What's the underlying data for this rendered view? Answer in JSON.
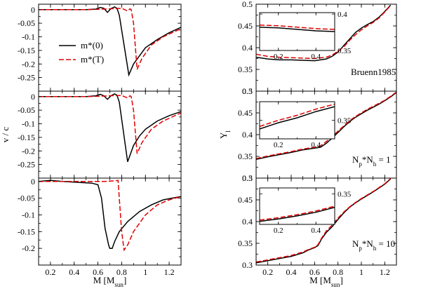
{
  "figure_title": "",
  "legend": {
    "solid": "m*(0)",
    "dashed": "m*(T)"
  },
  "colors": {
    "solid": "#000000",
    "dashed": "#e00000"
  },
  "chart_data": [
    {
      "type": "line",
      "panel": "left-top",
      "xlim": [
        0.1,
        1.3
      ],
      "ylim": [
        -0.3,
        0.02
      ],
      "xticks": [
        "0.2",
        "0.4",
        "0.6",
        "0.8",
        "1",
        "1.2"
      ],
      "yticks": [
        "0",
        "-0.05",
        "-0.1",
        "-0.15",
        "-0.2",
        "-0.25"
      ],
      "ytick_values": [
        0,
        -0.05,
        -0.1,
        -0.15,
        -0.2,
        -0.25
      ],
      "xlabel": "",
      "ylabel": "",
      "series": [
        {
          "name": "m*(0)",
          "style": "solid",
          "x": [
            0.1,
            0.3,
            0.5,
            0.58,
            0.62,
            0.65,
            0.68,
            0.71,
            0.74,
            0.76,
            0.78,
            0.86,
            0.9,
            0.95,
            1.0,
            1.1,
            1.2,
            1.3
          ],
          "y": [
            0,
            0,
            0,
            0.002,
            0.008,
            0.005,
            -0.01,
            0.004,
            0.01,
            0.005,
            -0.02,
            -0.24,
            -0.2,
            -0.17,
            -0.14,
            -0.11,
            -0.085,
            -0.065
          ]
        },
        {
          "name": "m*(T)",
          "style": "dashed",
          "x": [
            0.1,
            0.5,
            0.65,
            0.75,
            0.8,
            0.85,
            0.87,
            0.88,
            0.9,
            0.93,
            0.97,
            1.05,
            1.15,
            1.3
          ],
          "y": [
            0,
            0,
            0.002,
            0.004,
            0.005,
            -0.005,
            0.003,
            0.0,
            -0.05,
            -0.22,
            -0.18,
            -0.13,
            -0.1,
            -0.07
          ]
        }
      ]
    },
    {
      "type": "line",
      "panel": "left-middle",
      "xlim": [
        0.1,
        1.3
      ],
      "ylim": [
        -0.3,
        0.02
      ],
      "xticks": [
        "0.2",
        "0.4",
        "0.6",
        "0.8",
        "1",
        "1.2"
      ],
      "yticks": [
        "0",
        "-0.05",
        "-0.1",
        "-0.15",
        "-0.2",
        "-0.25"
      ],
      "ytick_values": [
        0,
        -0.05,
        -0.1,
        -0.15,
        -0.2,
        -0.25
      ],
      "xlabel": "",
      "ylabel": "v / c",
      "series": [
        {
          "name": "m*(0)",
          "style": "solid",
          "x": [
            0.1,
            0.3,
            0.5,
            0.58,
            0.62,
            0.65,
            0.68,
            0.71,
            0.74,
            0.76,
            0.78,
            0.85,
            0.9,
            0.95,
            1.0,
            1.1,
            1.2,
            1.3
          ],
          "y": [
            0,
            0,
            0,
            0.003,
            0.008,
            0.003,
            -0.01,
            0.003,
            0.01,
            0.005,
            -0.02,
            -0.24,
            -0.18,
            -0.145,
            -0.12,
            -0.09,
            -0.07,
            -0.055
          ]
        },
        {
          "name": "m*(T)",
          "style": "dashed",
          "x": [
            0.1,
            0.5,
            0.65,
            0.75,
            0.8,
            0.85,
            0.87,
            0.88,
            0.9,
            0.93,
            0.97,
            1.05,
            1.15,
            1.3
          ],
          "y": [
            0,
            0,
            0.002,
            0.004,
            0.004,
            -0.005,
            0.003,
            0.0,
            -0.05,
            -0.21,
            -0.17,
            -0.12,
            -0.09,
            -0.06
          ]
        }
      ]
    },
    {
      "type": "line",
      "panel": "left-bottom",
      "xlim": [
        0.1,
        1.3
      ],
      "ylim": [
        -0.25,
        0.01
      ],
      "xticks": [
        "0.2",
        "0.4",
        "0.6",
        "0.8",
        "1",
        "1.2"
      ],
      "yticks": [
        "0",
        "-0.05",
        "-0.1",
        "-0.15",
        "-0.2"
      ],
      "ytick_values": [
        0,
        -0.05,
        -0.1,
        -0.15,
        -0.2
      ],
      "xlabel": "M [M_sun]",
      "ylabel": "",
      "series": [
        {
          "name": "m*(0)",
          "style": "solid",
          "x": [
            0.1,
            0.2,
            0.3,
            0.4,
            0.5,
            0.55,
            0.6,
            0.63,
            0.66,
            0.69,
            0.7,
            0.72,
            0.74,
            0.78,
            0.85,
            0.95,
            1.05,
            1.15,
            1.3
          ],
          "y": [
            0,
            0.003,
            0.0,
            -0.002,
            -0.004,
            -0.005,
            -0.01,
            -0.05,
            -0.14,
            -0.19,
            -0.2,
            -0.2,
            -0.18,
            -0.15,
            -0.12,
            -0.09,
            -0.07,
            -0.055,
            -0.045
          ]
        },
        {
          "name": "m*(T)",
          "style": "dashed",
          "x": [
            0.1,
            0.3,
            0.5,
            0.65,
            0.75,
            0.77,
            0.78,
            0.8,
            0.82,
            0.85,
            0.9,
            1.0,
            1.1,
            1.2,
            1.3
          ],
          "y": [
            0,
            0,
            0,
            0,
            0.002,
            0.003,
            -0.05,
            -0.15,
            -0.205,
            -0.19,
            -0.15,
            -0.1,
            -0.07,
            -0.055,
            -0.045
          ]
        }
      ]
    },
    {
      "type": "line",
      "panel": "right-top",
      "xlim": [
        0.1,
        1.3
      ],
      "ylim": [
        0.3,
        0.5
      ],
      "xticks": [
        "0.2",
        "0.4",
        "0.6",
        "0.8",
        "1",
        "1.2"
      ],
      "yticks": [
        "0.5",
        "0.45",
        "0.4",
        "0.35",
        "0.3"
      ],
      "ytick_values": [
        0.5,
        0.45,
        0.4,
        0.35,
        0.3
      ],
      "xlabel": "",
      "ylabel": "",
      "annotation": "Bruenn1985",
      "series": [
        {
          "name": "m*(0)",
          "style": "solid",
          "x": [
            0.1,
            0.2,
            0.3,
            0.4,
            0.5,
            0.6,
            0.7,
            0.75,
            0.8,
            0.85,
            0.9,
            0.95,
            1.0,
            1.05,
            1.1,
            1.15,
            1.2,
            1.25
          ],
          "y": [
            0.378,
            0.374,
            0.372,
            0.372,
            0.371,
            0.37,
            0.374,
            0.38,
            0.39,
            0.405,
            0.42,
            0.435,
            0.445,
            0.453,
            0.46,
            0.47,
            0.483,
            0.498
          ]
        },
        {
          "name": "m*(T)",
          "style": "dashed",
          "x": [
            0.1,
            0.2,
            0.3,
            0.4,
            0.5,
            0.6,
            0.7,
            0.75,
            0.8,
            0.85,
            0.9,
            0.95,
            1.0,
            1.05,
            1.1,
            1.15,
            1.2,
            1.25
          ],
          "y": [
            0.385,
            0.38,
            0.378,
            0.377,
            0.376,
            0.375,
            0.378,
            0.383,
            0.392,
            0.402,
            0.417,
            0.43,
            0.441,
            0.45,
            0.458,
            0.468,
            0.482,
            0.497
          ]
        }
      ],
      "inset": {
        "xlim": [
          0.1,
          0.5
        ],
        "ylim": [
          0.35,
          0.402
        ],
        "xticks": [
          "0.2",
          "0.4"
        ],
        "yticks": [
          "0.4",
          "0.35"
        ],
        "ytick_values": [
          0.4,
          0.35
        ],
        "series": [
          {
            "name": "m*(0)",
            "style": "solid",
            "x": [
              0.1,
              0.2,
              0.3,
              0.4,
              0.5
            ],
            "y": [
              0.382,
              0.381,
              0.379,
              0.377,
              0.376
            ]
          },
          {
            "name": "m*(T)",
            "style": "dashed",
            "x": [
              0.1,
              0.2,
              0.3,
              0.4,
              0.5
            ],
            "y": [
              0.385,
              0.384,
              0.382,
              0.38,
              0.379
            ]
          }
        ]
      }
    },
    {
      "type": "line",
      "panel": "right-middle",
      "xlim": [
        0.1,
        1.3
      ],
      "ylim": [
        0.3,
        0.5
      ],
      "xticks": [
        "0.2",
        "0.4",
        "0.6",
        "0.8",
        "1",
        "1.2"
      ],
      "yticks": [
        "0.5",
        "0.45",
        "0.4",
        "0.35",
        "0.3"
      ],
      "ytick_values": [
        0.5,
        0.45,
        0.4,
        0.35,
        0.3
      ],
      "xlabel": "",
      "ylabel": "Y_l",
      "annotation": "N_p*N_h = 1",
      "series": [
        {
          "name": "m*(0)",
          "style": "solid",
          "x": [
            0.1,
            0.2,
            0.3,
            0.4,
            0.5,
            0.6,
            0.65,
            0.7,
            0.75,
            0.8,
            0.85,
            0.9,
            0.95,
            1.0,
            1.05,
            1.1,
            1.15,
            1.2,
            1.25,
            1.3
          ],
          "y": [
            0.343,
            0.349,
            0.354,
            0.359,
            0.365,
            0.369,
            0.371,
            0.38,
            0.392,
            0.405,
            0.418,
            0.43,
            0.44,
            0.448,
            0.456,
            0.463,
            0.47,
            0.478,
            0.487,
            0.497
          ]
        },
        {
          "name": "m*(T)",
          "style": "dashed",
          "x": [
            0.1,
            0.2,
            0.3,
            0.4,
            0.5,
            0.6,
            0.65,
            0.7,
            0.75,
            0.8,
            0.85,
            0.9,
            0.95,
            1.0,
            1.05,
            1.1,
            1.15,
            1.2,
            1.25,
            1.3
          ],
          "y": [
            0.345,
            0.351,
            0.356,
            0.361,
            0.367,
            0.371,
            0.374,
            0.384,
            0.396,
            0.408,
            0.42,
            0.432,
            0.442,
            0.45,
            0.458,
            0.465,
            0.472,
            0.479,
            0.488,
            0.498
          ]
        }
      ],
      "inset": {
        "xlim": [
          0.1,
          0.5
        ],
        "ylim": [
          0.335,
          0.365
        ],
        "xticks": [
          "0.2",
          "0.4"
        ],
        "yticks": [
          "0.35"
        ],
        "ytick_values": [
          0.35
        ],
        "series": [
          {
            "name": "m*(0)",
            "style": "solid",
            "x": [
              0.1,
              0.2,
              0.3,
              0.4,
              0.5
            ],
            "y": [
              0.343,
              0.348,
              0.352,
              0.357,
              0.361
            ]
          },
          {
            "name": "m*(T)",
            "style": "dashed",
            "x": [
              0.1,
              0.2,
              0.3,
              0.4,
              0.5
            ],
            "y": [
              0.345,
              0.35,
              0.354,
              0.359,
              0.363
            ]
          }
        ]
      }
    },
    {
      "type": "line",
      "panel": "right-bottom",
      "xlim": [
        0.1,
        1.3
      ],
      "ylim": [
        0.3,
        0.5
      ],
      "xticks": [
        "0.2",
        "0.4",
        "0.6",
        "0.8",
        "1",
        "1.2"
      ],
      "yticks": [
        "0.5",
        "0.45",
        "0.4",
        "0.35",
        "0.3"
      ],
      "ytick_values": [
        0.5,
        0.45,
        0.4,
        0.35,
        0.3
      ],
      "xlabel": "M [M_sun]",
      "ylabel": "",
      "annotation": "N_p*N_h = 10",
      "series": [
        {
          "name": "m*(0)",
          "style": "solid",
          "x": [
            0.1,
            0.2,
            0.3,
            0.4,
            0.5,
            0.55,
            0.6,
            0.63,
            0.66,
            0.7,
            0.75,
            0.8,
            0.85,
            0.9,
            0.95,
            1.0,
            1.05,
            1.1,
            1.15,
            1.2,
            1.25
          ],
          "y": [
            0.305,
            0.31,
            0.315,
            0.32,
            0.328,
            0.335,
            0.34,
            0.345,
            0.36,
            0.375,
            0.388,
            0.405,
            0.42,
            0.433,
            0.443,
            0.452,
            0.46,
            0.468,
            0.477,
            0.486,
            0.498
          ]
        },
        {
          "name": "m*(T)",
          "style": "dashed",
          "x": [
            0.1,
            0.2,
            0.3,
            0.4,
            0.5,
            0.55,
            0.6,
            0.63,
            0.66,
            0.7,
            0.75,
            0.8,
            0.85,
            0.9,
            0.95,
            1.0,
            1.05,
            1.1,
            1.15,
            1.2,
            1.25
          ],
          "y": [
            0.307,
            0.312,
            0.317,
            0.322,
            0.33,
            0.336,
            0.341,
            0.347,
            0.362,
            0.378,
            0.392,
            0.408,
            0.422,
            0.434,
            0.444,
            0.453,
            0.461,
            0.469,
            0.478,
            0.487,
            0.499
          ]
        }
      ],
      "inset": {
        "xlim": [
          0.1,
          0.5
        ],
        "ylim": [
          0.3,
          0.36
        ],
        "xticks": [
          "0.2",
          "0.4"
        ],
        "yticks": [
          "0.35"
        ],
        "ytick_values": [
          0.35
        ],
        "series": [
          {
            "name": "m*(0)",
            "style": "solid",
            "x": [
              0.1,
              0.2,
              0.3,
              0.4,
              0.5
            ],
            "y": [
              0.305,
              0.309,
              0.314,
              0.32,
              0.328
            ]
          },
          {
            "name": "m*(T)",
            "style": "dashed",
            "x": [
              0.1,
              0.2,
              0.3,
              0.4,
              0.5
            ],
            "y": [
              0.307,
              0.311,
              0.316,
              0.322,
              0.33
            ]
          }
        ]
      }
    }
  ]
}
